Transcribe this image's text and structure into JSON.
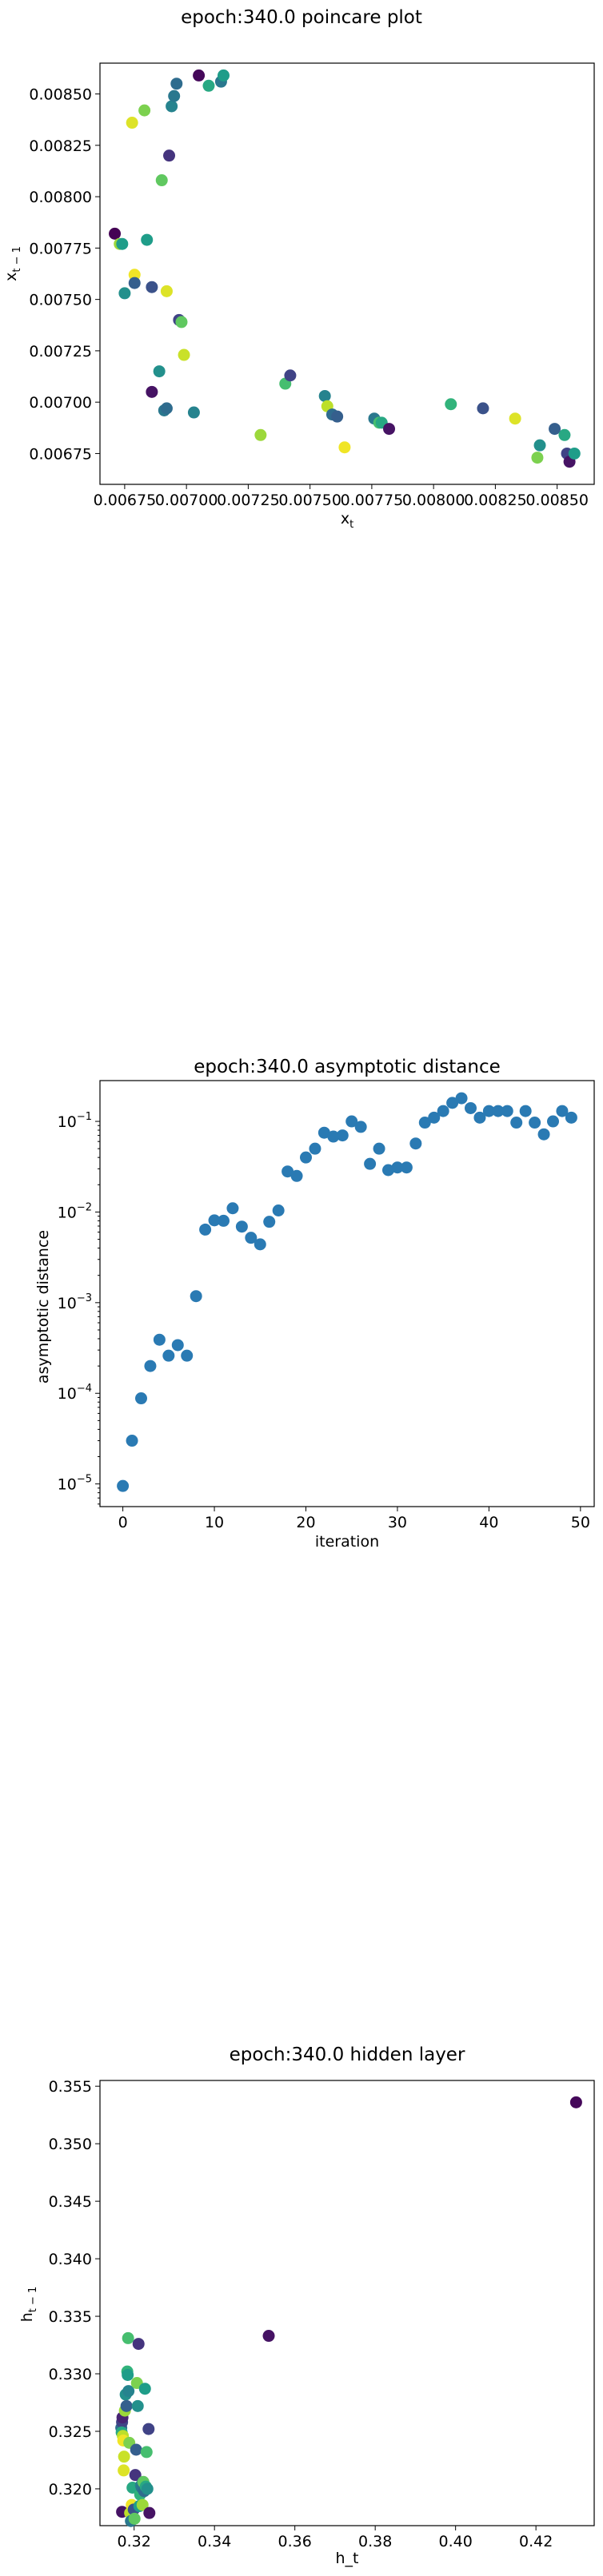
{
  "colors": {
    "scatter_single": "#2a7ab3"
  },
  "chart_data": [
    {
      "type": "scatter",
      "title": "epoch:340.0 poincare plot",
      "xlabel_main": "x",
      "xlabel_sub": "t",
      "ylabel_main": "x",
      "ylabel_sub": "t − 1",
      "xlim": [
        0.00665,
        0.00865
      ],
      "ylim": [
        0.0066,
        0.00865
      ],
      "xticks": [
        0.00675,
        0.007,
        0.00725,
        0.0075,
        0.00775,
        0.008,
        0.00825,
        0.0085
      ],
      "xticklabels": [
        "0.00675",
        "0.00700",
        "0.00725",
        "0.00750",
        "0.00775",
        "0.00800",
        "0.00825",
        "0.00850"
      ],
      "yticks": [
        0.00675,
        0.007,
        0.00725,
        0.0075,
        0.00775,
        0.008,
        0.00825,
        0.0085
      ],
      "yticklabels": [
        "0.00675",
        "0.00700",
        "0.00725",
        "0.00750",
        "0.00775",
        "0.00800",
        "0.00825",
        "0.00850"
      ],
      "colormap": "viridis",
      "points": [
        {
          "x": 0.00671,
          "y": 0.00782,
          "c": 0.0
        },
        {
          "x": 0.00673,
          "y": 0.00777,
          "c": 0.85
        },
        {
          "x": 0.00674,
          "y": 0.00777,
          "c": 0.55
        },
        {
          "x": 0.00675,
          "y": 0.00753,
          "c": 0.5
        },
        {
          "x": 0.00678,
          "y": 0.00836,
          "c": 0.95
        },
        {
          "x": 0.00679,
          "y": 0.00762,
          "c": 0.98
        },
        {
          "x": 0.00679,
          "y": 0.00758,
          "c": 0.3
        },
        {
          "x": 0.00683,
          "y": 0.00842,
          "c": 0.8
        },
        {
          "x": 0.00684,
          "y": 0.00779,
          "c": 0.55
        },
        {
          "x": 0.00686,
          "y": 0.00756,
          "c": 0.25
        },
        {
          "x": 0.00686,
          "y": 0.00705,
          "c": 0.05
        },
        {
          "x": 0.00689,
          "y": 0.00715,
          "c": 0.5
        },
        {
          "x": 0.0069,
          "y": 0.00808,
          "c": 0.75
        },
        {
          "x": 0.00691,
          "y": 0.00696,
          "c": 0.4
        },
        {
          "x": 0.00692,
          "y": 0.00697,
          "c": 0.35
        },
        {
          "x": 0.00692,
          "y": 0.00754,
          "c": 0.95
        },
        {
          "x": 0.00693,
          "y": 0.0082,
          "c": 0.15
        },
        {
          "x": 0.00694,
          "y": 0.00844,
          "c": 0.45
        },
        {
          "x": 0.00695,
          "y": 0.00849,
          "c": 0.4
        },
        {
          "x": 0.00696,
          "y": 0.00855,
          "c": 0.35
        },
        {
          "x": 0.00697,
          "y": 0.0074,
          "c": 0.2
        },
        {
          "x": 0.00698,
          "y": 0.00739,
          "c": 0.75
        },
        {
          "x": 0.00699,
          "y": 0.00723,
          "c": 0.92
        },
        {
          "x": 0.00703,
          "y": 0.00695,
          "c": 0.45
        },
        {
          "x": 0.00705,
          "y": 0.00859,
          "c": 0.02
        },
        {
          "x": 0.00709,
          "y": 0.00854,
          "c": 0.6
        },
        {
          "x": 0.00714,
          "y": 0.00856,
          "c": 0.4
        },
        {
          "x": 0.00715,
          "y": 0.00859,
          "c": 0.55
        },
        {
          "x": 0.0073,
          "y": 0.00684,
          "c": 0.85
        },
        {
          "x": 0.0074,
          "y": 0.00709,
          "c": 0.7
        },
        {
          "x": 0.00742,
          "y": 0.00713,
          "c": 0.2
        },
        {
          "x": 0.00756,
          "y": 0.00703,
          "c": 0.45
        },
        {
          "x": 0.00757,
          "y": 0.00698,
          "c": 0.9
        },
        {
          "x": 0.00759,
          "y": 0.00694,
          "c": 0.35
        },
        {
          "x": 0.00761,
          "y": 0.00693,
          "c": 0.3
        },
        {
          "x": 0.00764,
          "y": 0.00678,
          "c": 0.98
        },
        {
          "x": 0.00776,
          "y": 0.00692,
          "c": 0.4
        },
        {
          "x": 0.00778,
          "y": 0.0069,
          "c": 0.7
        },
        {
          "x": 0.00779,
          "y": 0.0069,
          "c": 0.6
        },
        {
          "x": 0.00782,
          "y": 0.00687,
          "c": 0.05
        },
        {
          "x": 0.00807,
          "y": 0.00699,
          "c": 0.65
        },
        {
          "x": 0.0082,
          "y": 0.00697,
          "c": 0.25
        },
        {
          "x": 0.00833,
          "y": 0.00692,
          "c": 0.95
        },
        {
          "x": 0.00842,
          "y": 0.00673,
          "c": 0.8
        },
        {
          "x": 0.00843,
          "y": 0.00679,
          "c": 0.5
        },
        {
          "x": 0.00849,
          "y": 0.00687,
          "c": 0.3
        },
        {
          "x": 0.00853,
          "y": 0.00684,
          "c": 0.6
        },
        {
          "x": 0.00854,
          "y": 0.00675,
          "c": 0.2
        },
        {
          "x": 0.00855,
          "y": 0.00671,
          "c": 0.05
        },
        {
          "x": 0.00857,
          "y": 0.00675,
          "c": 0.55
        }
      ]
    },
    {
      "type": "scatter",
      "title": "epoch:340.0 asymptotic distance",
      "xlabel": "iteration",
      "ylabel": "asymptotic distance",
      "yscale": "log",
      "xlim": [
        -2.5,
        51.5
      ],
      "ylim_exp": [
        -5.25,
        -0.55
      ],
      "xticks": [
        0,
        10,
        20,
        30,
        40,
        50
      ],
      "xticklabels": [
        "0",
        "10",
        "20",
        "30",
        "40",
        "50"
      ],
      "yticks_exp": [
        -5,
        -4,
        -3,
        -2,
        -1
      ],
      "yticklabels_base": "10",
      "yticklabels_exp": [
        "−5",
        "−4",
        "−3",
        "−2",
        "−1"
      ],
      "x": [
        0,
        1,
        2,
        3,
        4,
        5,
        6,
        7,
        8,
        9,
        10,
        11,
        12,
        13,
        14,
        15,
        16,
        17,
        18,
        19,
        20,
        21,
        22,
        23,
        24,
        25,
        26,
        27,
        28,
        29,
        30,
        31,
        32,
        33,
        34,
        35,
        36,
        37,
        38,
        39,
        40,
        41,
        42,
        43,
        44,
        45,
        46,
        47,
        48,
        49
      ],
      "y": [
        9.5e-06,
        3e-05,
        8.8e-05,
        0.0002,
        0.00039,
        0.00026,
        0.00034,
        0.00026,
        0.00118,
        0.0064,
        0.0081,
        0.008,
        0.011,
        0.0069,
        0.0052,
        0.0044,
        0.0078,
        0.0104,
        0.028,
        0.025,
        0.04,
        0.05,
        0.075,
        0.068,
        0.07,
        0.1,
        0.087,
        0.034,
        0.05,
        0.029,
        0.031,
        0.031,
        0.057,
        0.097,
        0.11,
        0.13,
        0.16,
        0.18,
        0.14,
        0.11,
        0.13,
        0.13,
        0.13,
        0.097,
        0.13,
        0.097,
        0.072,
        0.1,
        0.13,
        0.11
      ]
    },
    {
      "type": "scatter",
      "title": "epoch:340.0 hidden layer",
      "xlabel": "h_t",
      "ylabel_main": "h",
      "ylabel_sub": "t − 1",
      "xlim": [
        0.3115,
        0.4345
      ],
      "ylim": [
        0.3168,
        0.3555
      ],
      "xticks": [
        0.32,
        0.34,
        0.36,
        0.38,
        0.4,
        0.42
      ],
      "xticklabels": [
        "0.32",
        "0.34",
        "0.36",
        "0.38",
        "0.40",
        "0.42"
      ],
      "yticks": [
        0.32,
        0.325,
        0.33,
        0.335,
        0.34,
        0.345,
        0.35,
        0.355
      ],
      "yticklabels": [
        "0.320",
        "0.325",
        "0.330",
        "0.335",
        "0.340",
        "0.345",
        "0.350",
        "0.355"
      ],
      "colormap": "viridis",
      "points": [
        {
          "x": 0.43,
          "y": 0.3536,
          "c": 0.02
        },
        {
          "x": 0.3535,
          "y": 0.3333,
          "c": 0.05
        },
        {
          "x": 0.317,
          "y": 0.318,
          "c": 0.05
        },
        {
          "x": 0.3168,
          "y": 0.3253,
          "c": 0.35
        },
        {
          "x": 0.317,
          "y": 0.3258,
          "c": 0.2
        },
        {
          "x": 0.3171,
          "y": 0.3262,
          "c": 0.1
        },
        {
          "x": 0.3169,
          "y": 0.3249,
          "c": 0.6
        },
        {
          "x": 0.3172,
          "y": 0.3246,
          "c": 0.9
        },
        {
          "x": 0.3173,
          "y": 0.3242,
          "c": 0.98
        },
        {
          "x": 0.3174,
          "y": 0.3216,
          "c": 0.95
        },
        {
          "x": 0.3175,
          "y": 0.3228,
          "c": 0.92
        },
        {
          "x": 0.3177,
          "y": 0.3268,
          "c": 0.85
        },
        {
          "x": 0.3179,
          "y": 0.3282,
          "c": 0.5
        },
        {
          "x": 0.3181,
          "y": 0.3272,
          "c": 0.3
        },
        {
          "x": 0.3183,
          "y": 0.3302,
          "c": 0.65
        },
        {
          "x": 0.3184,
          "y": 0.3299,
          "c": 0.55
        },
        {
          "x": 0.3185,
          "y": 0.3331,
          "c": 0.7
        },
        {
          "x": 0.3186,
          "y": 0.3285,
          "c": 0.45
        },
        {
          "x": 0.3188,
          "y": 0.324,
          "c": 0.8
        },
        {
          "x": 0.319,
          "y": 0.3179,
          "c": 0.9
        },
        {
          "x": 0.3192,
          "y": 0.3172,
          "c": 0.4
        },
        {
          "x": 0.3194,
          "y": 0.3186,
          "c": 0.98
        },
        {
          "x": 0.3196,
          "y": 0.3201,
          "c": 0.6
        },
        {
          "x": 0.3199,
          "y": 0.3182,
          "c": 0.25
        },
        {
          "x": 0.3201,
          "y": 0.3174,
          "c": 0.75
        },
        {
          "x": 0.3203,
          "y": 0.3212,
          "c": 0.15
        },
        {
          "x": 0.3205,
          "y": 0.3234,
          "c": 0.3
        },
        {
          "x": 0.3207,
          "y": 0.3292,
          "c": 0.8
        },
        {
          "x": 0.3209,
          "y": 0.3272,
          "c": 0.5
        },
        {
          "x": 0.3211,
          "y": 0.3326,
          "c": 0.15
        },
        {
          "x": 0.3213,
          "y": 0.3185,
          "c": 0.55
        },
        {
          "x": 0.3215,
          "y": 0.3195,
          "c": 0.65
        },
        {
          "x": 0.3217,
          "y": 0.3203,
          "c": 0.45
        },
        {
          "x": 0.3219,
          "y": 0.3201,
          "c": 0.4
        },
        {
          "x": 0.3221,
          "y": 0.3186,
          "c": 0.85
        },
        {
          "x": 0.3223,
          "y": 0.3206,
          "c": 0.75
        },
        {
          "x": 0.3225,
          "y": 0.3198,
          "c": 0.35
        },
        {
          "x": 0.3227,
          "y": 0.3287,
          "c": 0.55
        },
        {
          "x": 0.3229,
          "y": 0.3202,
          "c": 0.6
        },
        {
          "x": 0.3231,
          "y": 0.3232,
          "c": 0.7
        },
        {
          "x": 0.3233,
          "y": 0.32,
          "c": 0.5
        },
        {
          "x": 0.3236,
          "y": 0.3252,
          "c": 0.2
        },
        {
          "x": 0.3238,
          "y": 0.3179,
          "c": 0.05
        }
      ]
    }
  ]
}
